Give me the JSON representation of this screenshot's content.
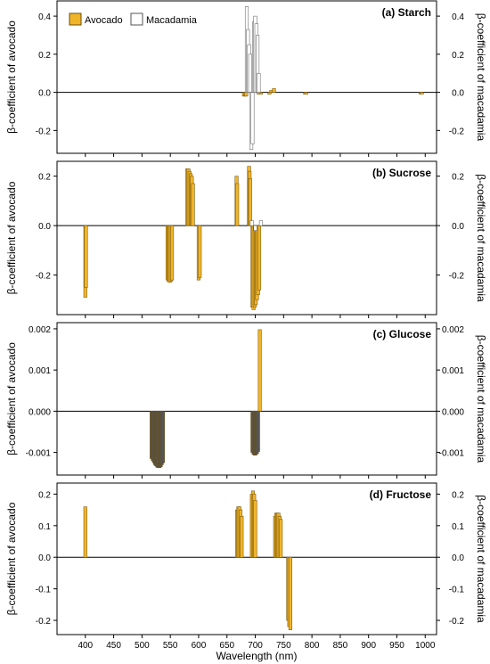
{
  "chart_data": {
    "type": "bar",
    "xlabel": "Wavelength (nm)",
    "xlim": [
      350,
      1020
    ],
    "xticks": [
      400,
      450,
      500,
      550,
      600,
      650,
      700,
      750,
      800,
      850,
      900,
      950,
      1000
    ],
    "legend": {
      "placement": "top-left",
      "entries": [
        {
          "name": "Avocado",
          "color": "#f0b429"
        },
        {
          "name": "Macadamia",
          "color": "#ffffff"
        }
      ]
    },
    "left_axis_label": "β-coefficient of avocado",
    "right_axis_label": "β-coefficient of macadamia",
    "panels": [
      {
        "title": "(a) Starch",
        "ylim": [
          -0.32,
          0.48
        ],
        "yticks": [
          -0.2,
          0.0,
          0.2,
          0.4
        ],
        "ytick_labels": [
          "-0.2",
          "0.0",
          "0.2",
          "0.4"
        ],
        "series": [
          {
            "name": "Avocado",
            "fill": "#f0b429",
            "points": [
              [
                680,
                -0.02
              ],
              [
                682,
                -0.02
              ],
              [
                684,
                -0.02
              ],
              [
                706,
                -0.01
              ],
              [
                710,
                -0.01
              ],
              [
                725,
                -0.01
              ],
              [
                728,
                0.01
              ],
              [
                733,
                0.02
              ],
              [
                788,
                -0.01
              ],
              [
                790,
                -0.01
              ],
              [
                992,
                -0.01
              ],
              [
                994,
                -0.01
              ]
            ]
          },
          {
            "name": "Macadamia",
            "fill": "#ffffff",
            "points": [
              [
                685,
                0.45
              ],
              [
                687,
                0.33
              ],
              [
                689,
                0.25
              ],
              [
                691,
                0.2
              ],
              [
                693,
                -0.3
              ],
              [
                695,
                -0.27
              ],
              [
                698,
                0.37
              ],
              [
                700,
                0.4
              ],
              [
                702,
                0.36
              ],
              [
                704,
                0.3
              ],
              [
                706,
                0.1
              ]
            ]
          }
        ]
      },
      {
        "title": "(b) Sucrose",
        "ylim": [
          -0.36,
          0.26
        ],
        "yticks": [
          -0.2,
          0.0,
          0.2
        ],
        "ytick_labels": [
          "-0.2",
          "0.0",
          "0.2"
        ],
        "series": [
          {
            "name": "Avocado",
            "fill": "#f0b429",
            "points": [
              [
                400,
                -0.29
              ],
              [
                401,
                -0.25
              ],
              [
                545,
                -0.22
              ],
              [
                547,
                -0.225
              ],
              [
                549,
                -0.23
              ],
              [
                551,
                -0.225
              ],
              [
                553,
                -0.22
              ],
              [
                580,
                0.23
              ],
              [
                582,
                0.23
              ],
              [
                584,
                0.22
              ],
              [
                586,
                0.21
              ],
              [
                588,
                0.2
              ],
              [
                590,
                0.17
              ],
              [
                600,
                -0.22
              ],
              [
                602,
                -0.21
              ],
              [
                667,
                0.2
              ],
              [
                668,
                0.17
              ],
              [
                689,
                0.24
              ],
              [
                690,
                0.22
              ],
              [
                691,
                0.19
              ],
              [
                695,
                -0.33
              ],
              [
                697,
                -0.34
              ],
              [
                699,
                -0.33
              ],
              [
                701,
                -0.32
              ],
              [
                703,
                -0.3
              ],
              [
                705,
                -0.28
              ],
              [
                707,
                -0.26
              ]
            ]
          },
          {
            "name": "Macadamia",
            "fill": "#ffffff",
            "points": [
              [
                694,
                0.02
              ],
              [
                700,
                -0.02
              ],
              [
                710,
                0.02
              ]
            ]
          }
        ]
      },
      {
        "title": "(c) Glucose",
        "ylim": [
          -0.00155,
          0.00215
        ],
        "yticks": [
          -0.001,
          0.0,
          0.001,
          0.002
        ],
        "ytick_labels": [
          "-0.001",
          "0.000",
          "0.001",
          "0.002"
        ],
        "series": [
          {
            "name": "Macadamia",
            "fill": "#555555",
            "points": [
              [
                517,
                -0.00115
              ],
              [
                519,
                -0.0012
              ],
              [
                521,
                -0.00125
              ],
              [
                523,
                -0.0013
              ],
              [
                525,
                -0.00133
              ],
              [
                527,
                -0.00136
              ],
              [
                529,
                -0.00137
              ],
              [
                531,
                -0.00137
              ],
              [
                533,
                -0.00135
              ],
              [
                535,
                -0.0013
              ],
              [
                537,
                -0.00125
              ],
              [
                695,
                -0.001
              ],
              [
                697,
                -0.00105
              ],
              [
                699,
                -0.00107
              ],
              [
                701,
                -0.00106
              ],
              [
                703,
                -0.00103
              ],
              [
                705,
                -0.00098
              ]
            ]
          },
          {
            "name": "Avocado",
            "fill": "#f0b429",
            "points": [
              [
                708,
                0.00198
              ]
            ]
          }
        ]
      },
      {
        "title": "(d) Fructose",
        "ylim": [
          -0.245,
          0.235
        ],
        "yticks": [
          -0.2,
          -0.1,
          0.0,
          0.1,
          0.2
        ],
        "ytick_labels": [
          "-0.2",
          "-0.1",
          "0.0",
          "0.1",
          "0.2"
        ],
        "series": [
          {
            "name": "Avocado",
            "fill": "#f0b429",
            "points": [
              [
                400,
                0.16
              ],
              [
                668,
                0.15
              ],
              [
                670,
                0.16
              ],
              [
                672,
                0.16
              ],
              [
                674,
                0.15
              ],
              [
                676,
                0.13
              ],
              [
                694,
                0.2
              ],
              [
                696,
                0.21
              ],
              [
                698,
                0.2
              ],
              [
                700,
                0.18
              ],
              [
                735,
                0.13
              ],
              [
                737,
                0.14
              ],
              [
                739,
                0.14
              ],
              [
                741,
                0.14
              ],
              [
                743,
                0.13
              ],
              [
                745,
                0.12
              ],
              [
                758,
                -0.2
              ],
              [
                760,
                -0.22
              ],
              [
                762,
                -0.23
              ]
            ]
          }
        ]
      }
    ]
  }
}
